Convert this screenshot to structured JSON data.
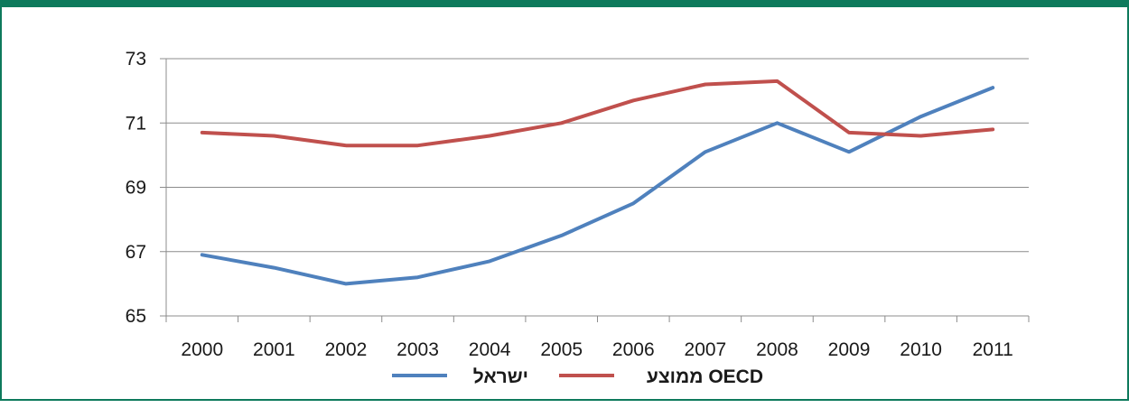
{
  "chart_data": {
    "type": "line",
    "title": "",
    "xlabel": "",
    "ylabel": "",
    "x": [
      "2000",
      "2001",
      "2002",
      "2003",
      "2004",
      "2005",
      "2006",
      "2007",
      "2008",
      "2009",
      "2010",
      "2011"
    ],
    "ylim": [
      65,
      73
    ],
    "yticks": [
      "65",
      "67",
      "69",
      "71",
      "73"
    ],
    "grid": true,
    "legend_position": "bottom",
    "series": [
      {
        "name": "ישראל",
        "color": "#4f81bd",
        "values": [
          66.9,
          66.5,
          66.0,
          66.2,
          66.7,
          67.5,
          68.5,
          70.1,
          71.0,
          70.1,
          71.2,
          72.1
        ]
      },
      {
        "name": "ממוצע OECD",
        "color": "#c0504d",
        "values": [
          70.7,
          70.6,
          70.3,
          70.3,
          70.6,
          71.0,
          71.7,
          72.2,
          72.3,
          70.7,
          70.6,
          70.8
        ]
      }
    ]
  }
}
